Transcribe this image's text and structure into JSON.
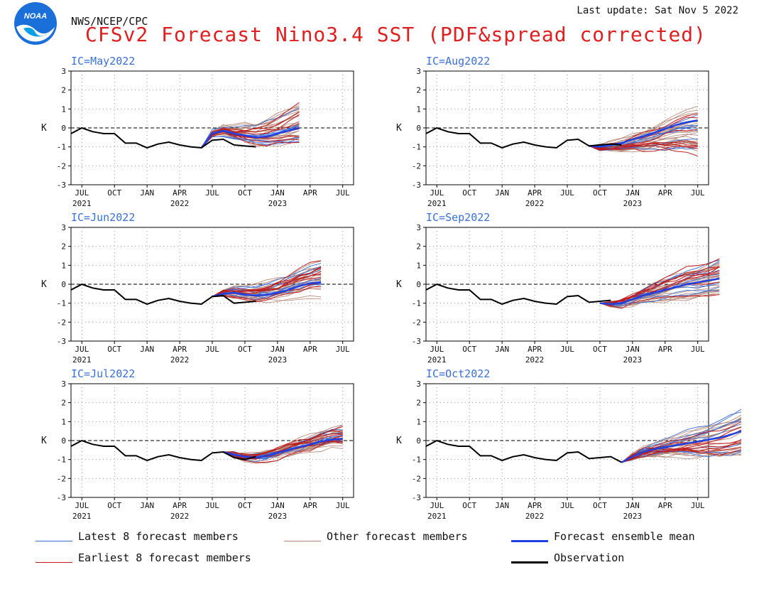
{
  "header": {
    "agency": "NWS/NCEP/CPC",
    "last_update": "Last update: Sat Nov 5 2022",
    "title": "CFSv2 Forecast Nino3.4 SST (PDF&spread corrected)",
    "logo_text": "NOAA"
  },
  "colors": {
    "title": "#e02020",
    "latest": "#3a6fd8",
    "earliest": "#c01818",
    "other": "#b08070",
    "mean": "#2040e0",
    "observation": "#000000",
    "ic_label": "#3a6fd8"
  },
  "legend": {
    "latest": "Latest 8 forecast members",
    "other": "Other forecast members",
    "mean": "Forecast ensemble mean",
    "earliest": "Earliest 8 forecast members",
    "observation": "Observation"
  },
  "chart_data": [
    {
      "type": "line",
      "panel": "ic-may2022",
      "ic_label": "IC=May2022",
      "ylabel": "K",
      "ylim": [
        -3,
        3
      ],
      "yticks": [
        "3",
        "2",
        "1",
        "0",
        "-1",
        "-2",
        "-3"
      ],
      "xticks": [
        "JUL",
        "OCT",
        "JAN",
        "APR",
        "JUL",
        "OCT",
        "JAN",
        "APR",
        "JUL"
      ],
      "year_labels": [
        "2021",
        "2022",
        "2023"
      ],
      "observation": [
        -0.3,
        0,
        -0.2,
        -0.3,
        -0.3,
        -0.8,
        -0.8,
        -1.05,
        -0.85,
        -0.75,
        -0.9,
        -1.0,
        -1.05,
        -0.65,
        -0.6,
        -0.9,
        -0.95,
        -1.0
      ],
      "mean": [
        -1.05,
        -0.3,
        -0.15,
        -0.3,
        -0.4,
        -0.5,
        -0.45,
        -0.3,
        -0.15,
        0.0
      ],
      "forecast_start_month": 12,
      "spread_end": [
        -0.7,
        1.1
      ]
    },
    {
      "type": "line",
      "panel": "ic-aug2022",
      "ic_label": "IC=Aug2022",
      "ylabel": "K",
      "ylim": [
        -3,
        3
      ],
      "yticks": [
        "3",
        "2",
        "1",
        "0",
        "-1",
        "-2",
        "-3"
      ],
      "xticks": [
        "JUL",
        "OCT",
        "JAN",
        "APR",
        "JUL",
        "OCT",
        "JAN",
        "APR",
        "JUL"
      ],
      "year_labels": [
        "2021",
        "2022",
        "2023"
      ],
      "observation": [
        -0.3,
        0,
        -0.2,
        -0.3,
        -0.3,
        -0.8,
        -0.8,
        -1.05,
        -0.85,
        -0.75,
        -0.9,
        -1.0,
        -1.05,
        -0.65,
        -0.6,
        -0.95,
        -0.9,
        -0.85,
        -0.9
      ],
      "mean": [
        -0.95,
        -1.0,
        -0.9,
        -0.8,
        -0.6,
        -0.45,
        -0.25,
        -0.05,
        0.15,
        0.3,
        0.4
      ],
      "forecast_start_month": 15,
      "spread_end": [
        -1.2,
        0.8
      ]
    },
    {
      "type": "line",
      "panel": "ic-jun2022",
      "ic_label": "IC=Jun2022",
      "ylabel": "K",
      "ylim": [
        -3,
        3
      ],
      "yticks": [
        "3",
        "2",
        "1",
        "0",
        "-1",
        "-2",
        "-3"
      ],
      "xticks": [
        "JUL",
        "OCT",
        "JAN",
        "APR",
        "JUL",
        "OCT",
        "JAN",
        "APR",
        "JUL"
      ],
      "year_labels": [
        "2021",
        "2022",
        "2023"
      ],
      "observation": [
        -0.3,
        0,
        -0.2,
        -0.3,
        -0.3,
        -0.8,
        -0.8,
        -1.05,
        -0.85,
        -0.75,
        -0.9,
        -1.0,
        -1.05,
        -0.65,
        -0.6,
        -1.0,
        -0.95,
        -0.9
      ],
      "mean": [
        -0.65,
        -0.5,
        -0.45,
        -0.55,
        -0.6,
        -0.55,
        -0.45,
        -0.3,
        -0.1,
        0.05,
        0.1
      ],
      "forecast_start_month": 13,
      "spread_end": [
        -0.5,
        0.9
      ]
    },
    {
      "type": "line",
      "panel": "ic-sep2022",
      "ic_label": "IC=Sep2022",
      "ylabel": "K",
      "ylim": [
        -3,
        3
      ],
      "yticks": [
        "3",
        "2",
        "1",
        "0",
        "-1",
        "-2",
        "-3"
      ],
      "xticks": [
        "JUL",
        "OCT",
        "JAN",
        "APR",
        "JUL",
        "OCT",
        "JAN",
        "APR",
        "JUL"
      ],
      "year_labels": [
        "2021",
        "2022",
        "2023"
      ],
      "observation": [
        -0.3,
        0,
        -0.2,
        -0.3,
        -0.3,
        -0.8,
        -0.8,
        -1.05,
        -0.85,
        -0.75,
        -0.9,
        -1.0,
        -1.05,
        -0.65,
        -0.6,
        -0.95,
        -0.9,
        -0.85
      ],
      "mean": [
        -1.0,
        -1.05,
        -1.0,
        -0.8,
        -0.6,
        -0.45,
        -0.3,
        -0.15,
        0.0,
        0.1,
        0.2,
        0.3
      ],
      "forecast_start_month": 16,
      "spread_end": [
        -0.4,
        1.1
      ]
    },
    {
      "type": "line",
      "panel": "ic-jul2022",
      "ic_label": "IC=Jul2022",
      "ylabel": "K",
      "ylim": [
        -3,
        3
      ],
      "yticks": [
        "3",
        "2",
        "1",
        "0",
        "-1",
        "-2",
        "-3"
      ],
      "xticks": [
        "JUL",
        "OCT",
        "JAN",
        "APR",
        "JUL",
        "OCT",
        "JAN",
        "APR",
        "JUL"
      ],
      "year_labels": [
        "2021",
        "2022",
        "2023"
      ],
      "observation": [
        -0.3,
        0,
        -0.2,
        -0.3,
        -0.3,
        -0.8,
        -0.8,
        -1.05,
        -0.85,
        -0.75,
        -0.9,
        -1.0,
        -1.05,
        -0.65,
        -0.6,
        -0.9,
        -1.0,
        -0.85
      ],
      "mean": [
        -0.6,
        -0.75,
        -0.85,
        -0.9,
        -0.8,
        -0.65,
        -0.5,
        -0.35,
        -0.2,
        -0.05,
        0.05,
        0.1
      ],
      "forecast_start_month": 14,
      "spread_end": [
        -0.2,
        0.7
      ]
    },
    {
      "type": "line",
      "panel": "ic-oct2022",
      "ic_label": "IC=Oct2022",
      "ylabel": "K",
      "ylim": [
        -3,
        3
      ],
      "yticks": [
        "3",
        "2",
        "1",
        "0",
        "-1",
        "-2",
        "-3"
      ],
      "xticks": [
        "JUL",
        "OCT",
        "JAN",
        "APR",
        "JUL",
        "OCT",
        "JAN",
        "APR",
        "JUL"
      ],
      "year_labels": [
        "2021",
        "2022",
        "2023"
      ],
      "observation": [
        -0.3,
        0,
        -0.2,
        -0.3,
        -0.3,
        -0.8,
        -0.8,
        -1.05,
        -0.85,
        -0.75,
        -0.9,
        -1.0,
        -1.05,
        -0.65,
        -0.6,
        -0.95,
        -0.9,
        -0.85,
        -1.15
      ],
      "mean": [
        -1.15,
        -0.85,
        -0.6,
        -0.45,
        -0.35,
        -0.25,
        -0.15,
        -0.05,
        0.05,
        0.15,
        0.3,
        0.5
      ],
      "forecast_start_month": 18,
      "spread_end": [
        -0.6,
        1.4
      ]
    }
  ]
}
